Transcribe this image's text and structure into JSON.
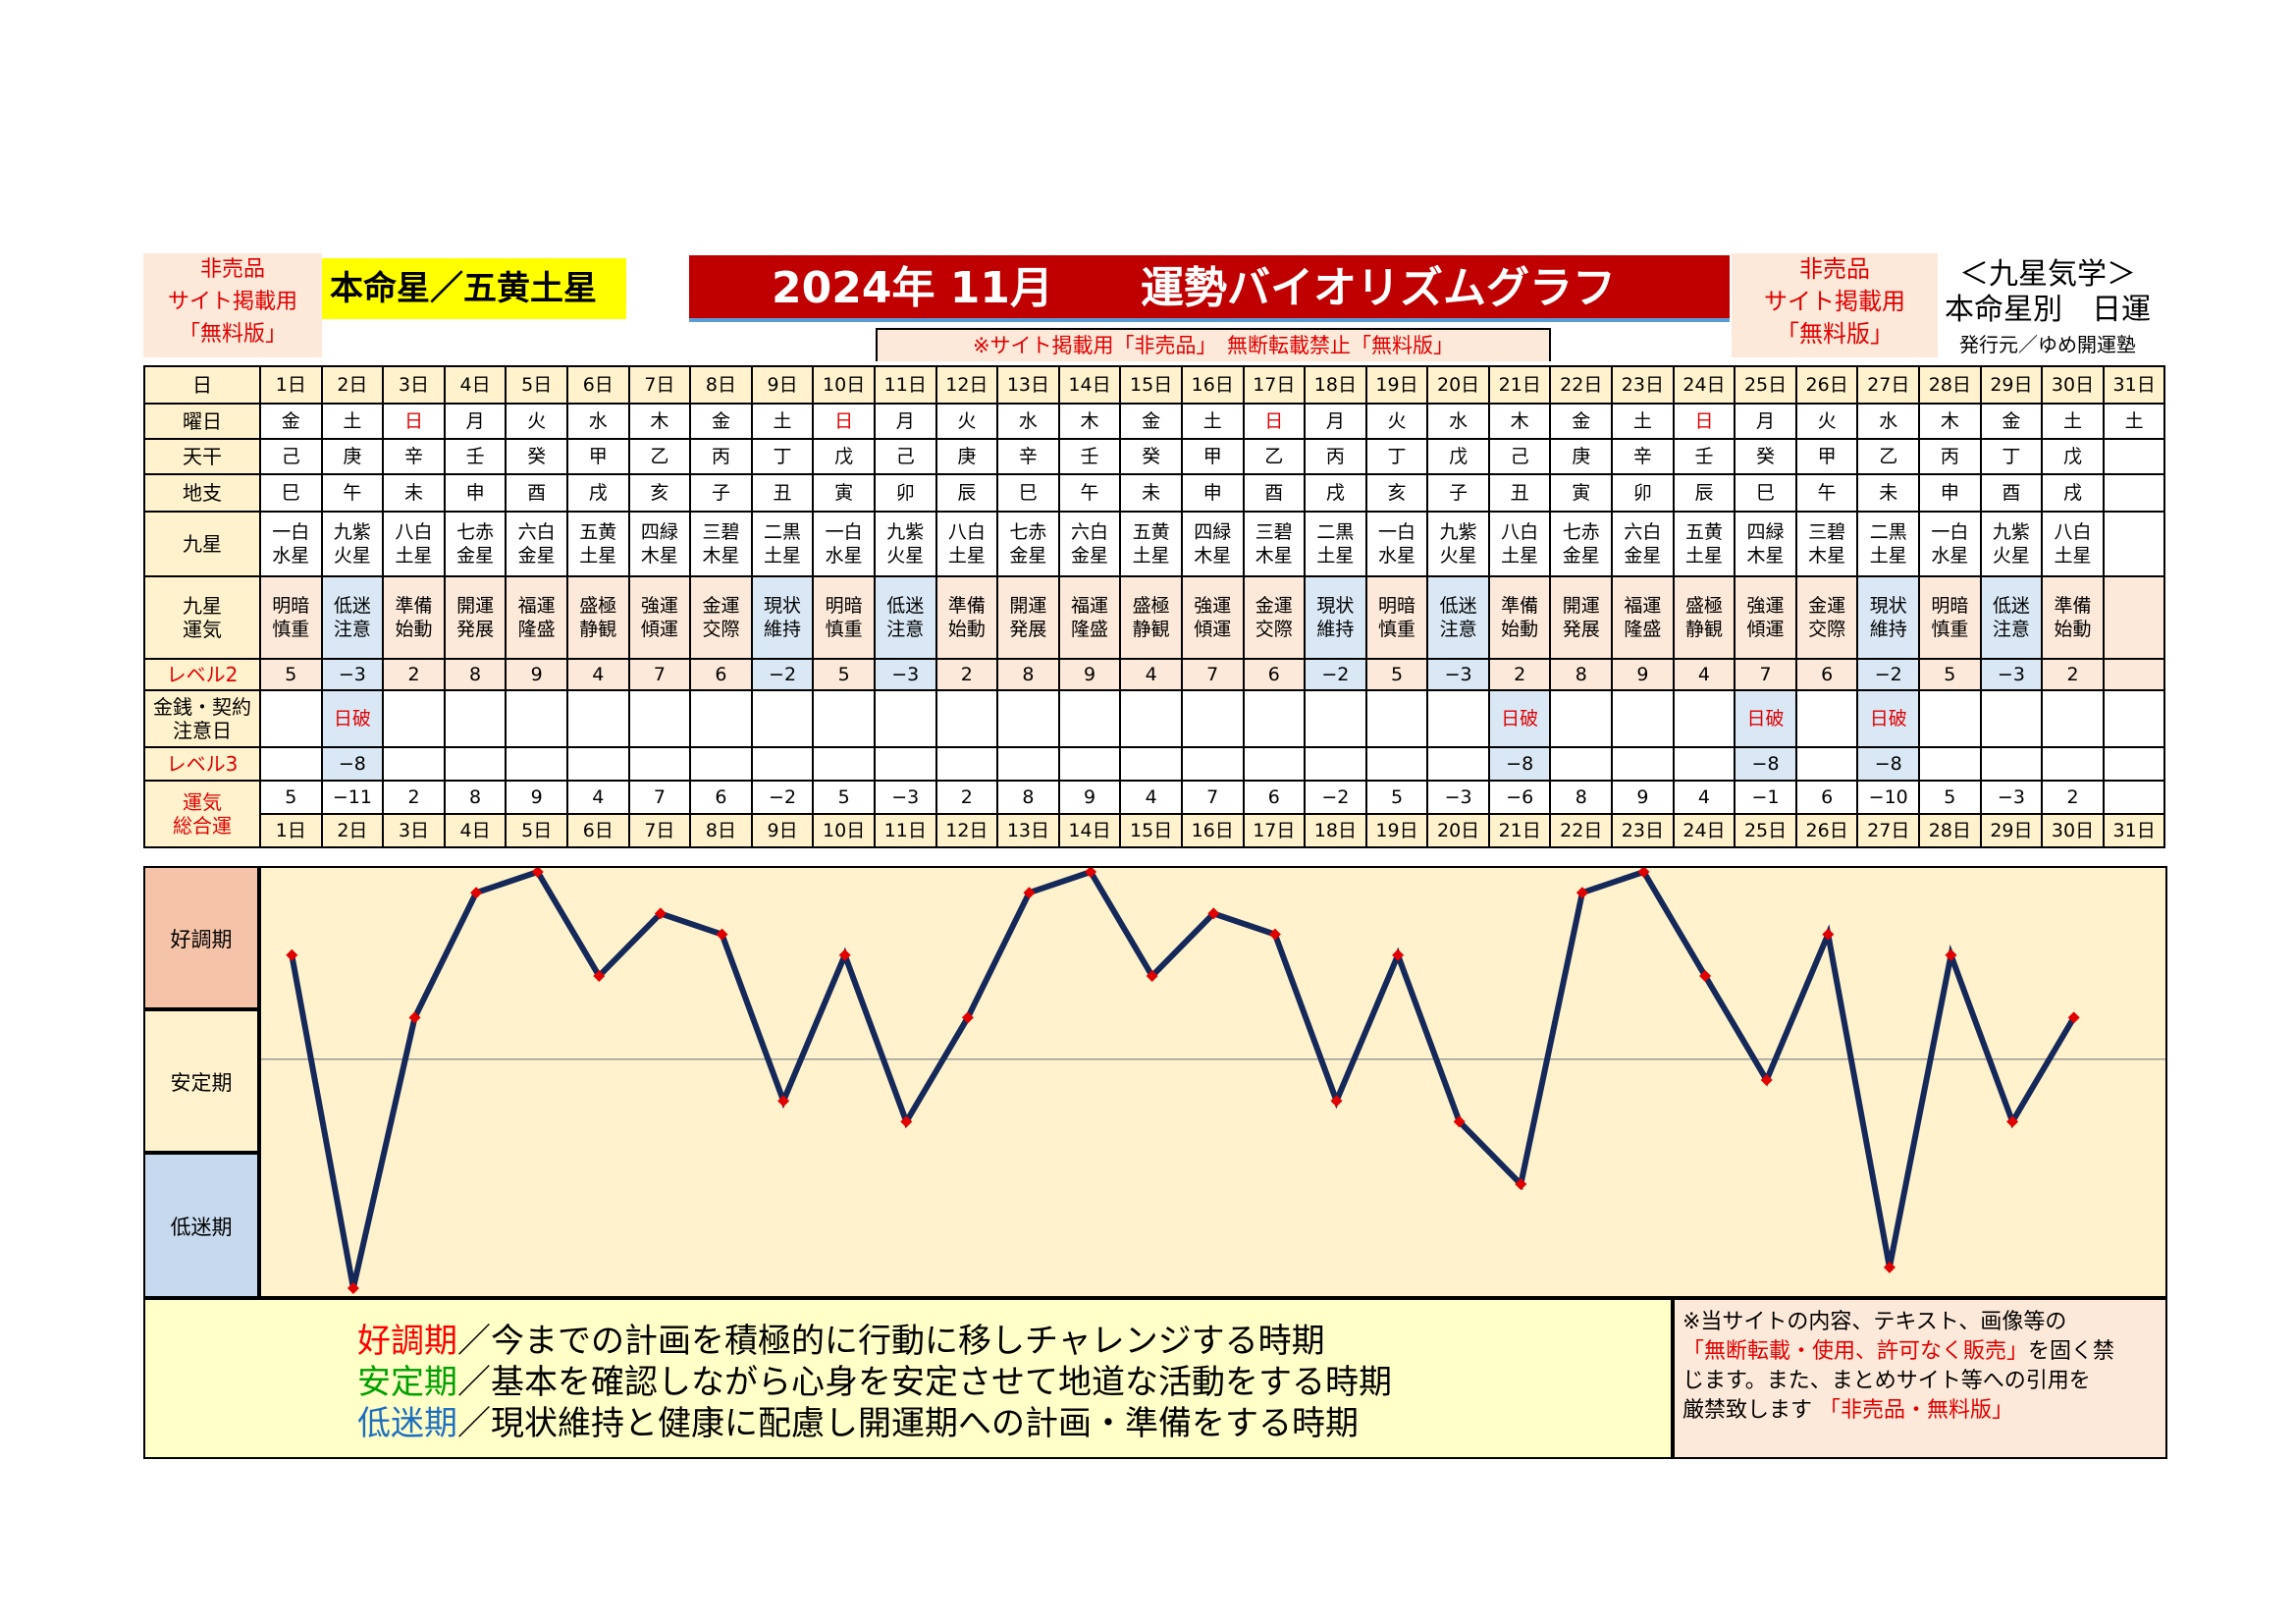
{
  "header": {
    "left_notice": [
      "非売品",
      "サイト掲載用",
      "「無料版」"
    ],
    "star_label": "本命星／五黄土星",
    "title_month": "2024年 11月",
    "title_main": "運勢バイオリズムグラフ",
    "sub_notice": "※サイト掲載用「非売品」　無断転載禁止「無料版」",
    "right_notice": [
      "非売品",
      "サイト掲載用",
      "「無料版」"
    ],
    "right_title": [
      "＜九星気学＞",
      "本命星別　日運"
    ],
    "publisher": "発行元／ゆめ開運塾"
  },
  "table": {
    "row_labels": {
      "day": "日",
      "weekday": "曜日",
      "tenkan": "天干",
      "chishi": "地支",
      "kyusei": "九星",
      "unki": "九星\n運気",
      "level2": "レベル2",
      "money": "金銭・契約\n注意日",
      "level3": "レベル3",
      "total": "運気\n総合運"
    },
    "days": [
      "1日",
      "2日",
      "3日",
      "4日",
      "5日",
      "6日",
      "7日",
      "8日",
      "9日",
      "10日",
      "11日",
      "12日",
      "13日",
      "14日",
      "15日",
      "16日",
      "17日",
      "18日",
      "19日",
      "20日",
      "21日",
      "22日",
      "23日",
      "24日",
      "25日",
      "26日",
      "27日",
      "28日",
      "29日",
      "30日",
      "31日"
    ],
    "weekday": [
      "金",
      "土",
      "日",
      "月",
      "火",
      "水",
      "木",
      "金",
      "土",
      "日",
      "月",
      "火",
      "水",
      "木",
      "金",
      "土",
      "日",
      "月",
      "火",
      "水",
      "木",
      "金",
      "土",
      "日",
      "月",
      "火",
      "水",
      "木",
      "金",
      "土",
      "土"
    ],
    "tenkan": [
      "己",
      "庚",
      "辛",
      "壬",
      "癸",
      "甲",
      "乙",
      "丙",
      "丁",
      "戊",
      "己",
      "庚",
      "辛",
      "壬",
      "癸",
      "甲",
      "乙",
      "丙",
      "丁",
      "戊",
      "己",
      "庚",
      "辛",
      "壬",
      "癸",
      "甲",
      "乙",
      "丙",
      "丁",
      "戊",
      ""
    ],
    "chishi": [
      "巳",
      "午",
      "未",
      "申",
      "酉",
      "戌",
      "亥",
      "子",
      "丑",
      "寅",
      "卯",
      "辰",
      "巳",
      "午",
      "未",
      "申",
      "酉",
      "戌",
      "亥",
      "子",
      "丑",
      "寅",
      "卯",
      "辰",
      "巳",
      "午",
      "未",
      "申",
      "酉",
      "戌",
      ""
    ],
    "kyusei": [
      [
        "一白",
        "水星"
      ],
      [
        "九紫",
        "火星"
      ],
      [
        "八白",
        "土星"
      ],
      [
        "七赤",
        "金星"
      ],
      [
        "六白",
        "金星"
      ],
      [
        "五黄",
        "土星"
      ],
      [
        "四緑",
        "木星"
      ],
      [
        "三碧",
        "木星"
      ],
      [
        "二黒",
        "土星"
      ],
      [
        "一白",
        "水星"
      ],
      [
        "九紫",
        "火星"
      ],
      [
        "八白",
        "土星"
      ],
      [
        "七赤",
        "金星"
      ],
      [
        "六白",
        "金星"
      ],
      [
        "五黄",
        "土星"
      ],
      [
        "四緑",
        "木星"
      ],
      [
        "三碧",
        "木星"
      ],
      [
        "二黒",
        "土星"
      ],
      [
        "一白",
        "水星"
      ],
      [
        "九紫",
        "火星"
      ],
      [
        "八白",
        "土星"
      ],
      [
        "七赤",
        "金星"
      ],
      [
        "六白",
        "金星"
      ],
      [
        "五黄",
        "土星"
      ],
      [
        "四緑",
        "木星"
      ],
      [
        "三碧",
        "木星"
      ],
      [
        "二黒",
        "土星"
      ],
      [
        "一白",
        "水星"
      ],
      [
        "九紫",
        "火星"
      ],
      [
        "八白",
        "土星"
      ],
      [
        "",
        ""
      ]
    ],
    "unki": [
      [
        "明暗",
        "慎重"
      ],
      [
        "低迷",
        "注意"
      ],
      [
        "準備",
        "始動"
      ],
      [
        "開運",
        "発展"
      ],
      [
        "福運",
        "隆盛"
      ],
      [
        "盛極",
        "静観"
      ],
      [
        "強運",
        "傾運"
      ],
      [
        "金運",
        "交際"
      ],
      [
        "現状",
        "維持"
      ],
      [
        "明暗",
        "慎重"
      ],
      [
        "低迷",
        "注意"
      ],
      [
        "準備",
        "始動"
      ],
      [
        "開運",
        "発展"
      ],
      [
        "福運",
        "隆盛"
      ],
      [
        "盛極",
        "静観"
      ],
      [
        "強運",
        "傾運"
      ],
      [
        "金運",
        "交際"
      ],
      [
        "現状",
        "維持"
      ],
      [
        "明暗",
        "慎重"
      ],
      [
        "低迷",
        "注意"
      ],
      [
        "準備",
        "始動"
      ],
      [
        "開運",
        "発展"
      ],
      [
        "福運",
        "隆盛"
      ],
      [
        "盛極",
        "静観"
      ],
      [
        "強運",
        "傾運"
      ],
      [
        "金運",
        "交際"
      ],
      [
        "現状",
        "維持"
      ],
      [
        "明暗",
        "慎重"
      ],
      [
        "低迷",
        "注意"
      ],
      [
        "準備",
        "始動"
      ],
      [
        "",
        ""
      ]
    ],
    "level2": [
      "5",
      "−3",
      "2",
      "8",
      "9",
      "4",
      "7",
      "6",
      "−2",
      "5",
      "−3",
      "2",
      "8",
      "9",
      "4",
      "7",
      "6",
      "−2",
      "5",
      "−3",
      "2",
      "8",
      "9",
      "4",
      "7",
      "6",
      "−2",
      "5",
      "−3",
      "2",
      ""
    ],
    "money": [
      "",
      "日破",
      "",
      "",
      "",
      "",
      "",
      "",
      "",
      "",
      "",
      "",
      "",
      "",
      "",
      "",
      "",
      "",
      "",
      "",
      "日破",
      "",
      "",
      "",
      "日破",
      "",
      "日破",
      "",
      "",
      "",
      ""
    ],
    "level3": [
      "",
      "−8",
      "",
      "",
      "",
      "",
      "",
      "",
      "",
      "",
      "",
      "",
      "",
      "",
      "",
      "",
      "",
      "",
      "",
      "",
      "−8",
      "",
      "",
      "",
      "−8",
      "",
      "−8",
      "",
      "",
      "",
      ""
    ],
    "total": [
      "5",
      "−11",
      "2",
      "8",
      "9",
      "4",
      "7",
      "6",
      "−2",
      "5",
      "−3",
      "2",
      "8",
      "9",
      "4",
      "7",
      "6",
      "−2",
      "5",
      "−3",
      "−6",
      "8",
      "9",
      "4",
      "−1",
      "6",
      "−10",
      "5",
      "−3",
      "2",
      ""
    ]
  },
  "bands": {
    "good": "好調期",
    "stable": "安定期",
    "low": "低迷期"
  },
  "legend": {
    "good_term": "好調期",
    "good_desc": "／今までの計画を積極的に行動に移しチャレンジする時期",
    "stable_term": "安定期",
    "stable_desc": "／基本を確認しながら心身を安定させて地道な活動をする時期",
    "low_term": "低迷期",
    "low_desc": "／現状維持と健康に配慮し開運期への計画・準備をする時期",
    "colors": {
      "good": "#ff0000",
      "stable": "#00a000",
      "low": "#1f6fbf"
    }
  },
  "notice2": {
    "line1": "※当サイトの内容、テキスト、画像等の",
    "line2_red": "「無断転載・使用、許可なく販売」",
    "line2_black": "を固く禁",
    "line3": "じます。また、まとめサイト等への引用を",
    "line4_black": "厳禁致します",
    "line4_red": "「非売品・無料版」"
  },
  "chart_data": {
    "type": "line",
    "x": [
      "1日",
      "2日",
      "3日",
      "4日",
      "5日",
      "6日",
      "7日",
      "8日",
      "9日",
      "10日",
      "11日",
      "12日",
      "13日",
      "14日",
      "15日",
      "16日",
      "17日",
      "18日",
      "19日",
      "20日",
      "21日",
      "22日",
      "23日",
      "24日",
      "25日",
      "26日",
      "27日",
      "28日",
      "29日",
      "30日"
    ],
    "values": [
      5,
      -11,
      2,
      8,
      9,
      4,
      7,
      6,
      -2,
      5,
      -3,
      2,
      8,
      9,
      4,
      7,
      6,
      -2,
      5,
      -3,
      -6,
      8,
      9,
      4,
      -1,
      6,
      -10,
      5,
      -3,
      2
    ],
    "ylim": [
      -11,
      9
    ],
    "reference_line": 0,
    "line_color": "#14285a",
    "marker_color": "#e00000"
  }
}
